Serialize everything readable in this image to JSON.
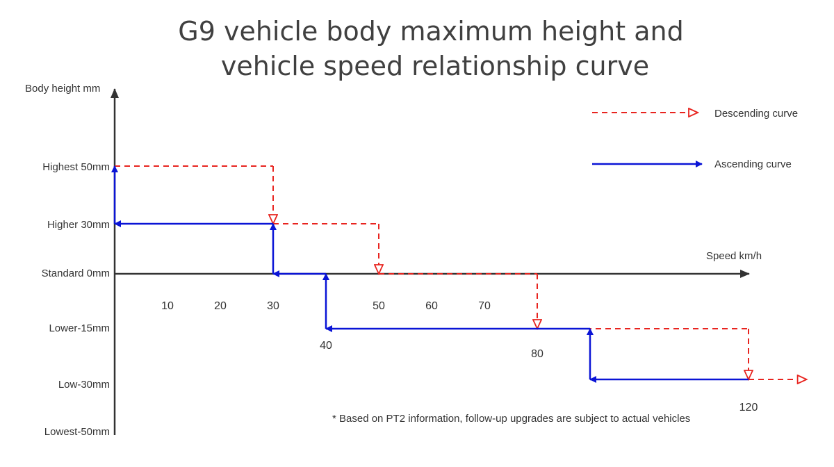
{
  "title": {
    "line1": "G9 vehicle body maximum height and",
    "line2": "vehicle speed relationship curve"
  },
  "y_axis": {
    "label": "Body height mm",
    "levels": [
      {
        "key": "highest",
        "label": "Highest 50mm"
      },
      {
        "key": "higher",
        "label": "Higher 30mm"
      },
      {
        "key": "standard",
        "label": "Standard 0mm"
      },
      {
        "key": "lower",
        "label": "Lower-15mm"
      },
      {
        "key": "low",
        "label": "Low-30mm"
      },
      {
        "key": "lowest",
        "label": "Lowest-50mm"
      }
    ]
  },
  "x_axis": {
    "label": "Speed km/h",
    "ticks_on_axis": [
      10,
      20,
      30,
      50,
      60,
      70
    ],
    "ticks_floating": [
      {
        "value": 40,
        "level": "lower"
      },
      {
        "value": 80,
        "level": "lower"
      },
      {
        "value": 120,
        "level": "low"
      }
    ]
  },
  "legend": {
    "descending": "Descending curve",
    "ascending": "Ascending curve"
  },
  "colors": {
    "descending": "#e8241f",
    "ascending": "#0a14d6",
    "axis": "#333333"
  },
  "footnote": "* Based on PT2 information, follow-up upgrades are subject to actual vehicles",
  "curves": {
    "descending": [
      {
        "from": [
          0,
          "highest"
        ],
        "to": [
          30,
          "highest"
        ]
      },
      {
        "from": [
          30,
          "highest"
        ],
        "to": [
          30,
          "higher"
        ],
        "arrow": true
      },
      {
        "from": [
          30,
          "higher"
        ],
        "to": [
          50,
          "higher"
        ]
      },
      {
        "from": [
          50,
          "higher"
        ],
        "to": [
          50,
          "standard"
        ],
        "arrow": true
      },
      {
        "from": [
          50,
          "standard"
        ],
        "to": [
          80,
          "standard"
        ]
      },
      {
        "from": [
          80,
          "standard"
        ],
        "to": [
          80,
          "lower"
        ],
        "arrow": true
      },
      {
        "from": [
          80,
          "lower"
        ],
        "to": [
          120,
          "lower"
        ]
      },
      {
        "from": [
          120,
          "lower"
        ],
        "to": [
          120,
          "low"
        ],
        "arrow": true
      },
      {
        "from": [
          120,
          "low"
        ],
        "to": [
          131,
          "low"
        ],
        "arrow": true
      }
    ],
    "ascending": [
      {
        "from": [
          90,
          "low"
        ],
        "to": [
          120,
          "low"
        ],
        "arrow_at_start": true
      },
      {
        "from": [
          90,
          "low"
        ],
        "to": [
          90,
          "lower"
        ],
        "arrow": true
      },
      {
        "from": [
          40,
          "lower"
        ],
        "to": [
          90,
          "lower"
        ],
        "arrow_at_start": true
      },
      {
        "from": [
          40,
          "lower"
        ],
        "to": [
          40,
          "standard"
        ],
        "arrow": true
      },
      {
        "from": [
          30,
          "standard"
        ],
        "to": [
          40,
          "standard"
        ],
        "arrow_at_start": true
      },
      {
        "from": [
          30,
          "standard"
        ],
        "to": [
          30,
          "higher"
        ],
        "arrow": true
      },
      {
        "from": [
          0,
          "higher"
        ],
        "to": [
          30,
          "higher"
        ],
        "arrow_at_start": true
      },
      {
        "from": [
          0,
          "higher"
        ],
        "to": [
          0,
          "highest"
        ],
        "arrow": true
      }
    ]
  }
}
